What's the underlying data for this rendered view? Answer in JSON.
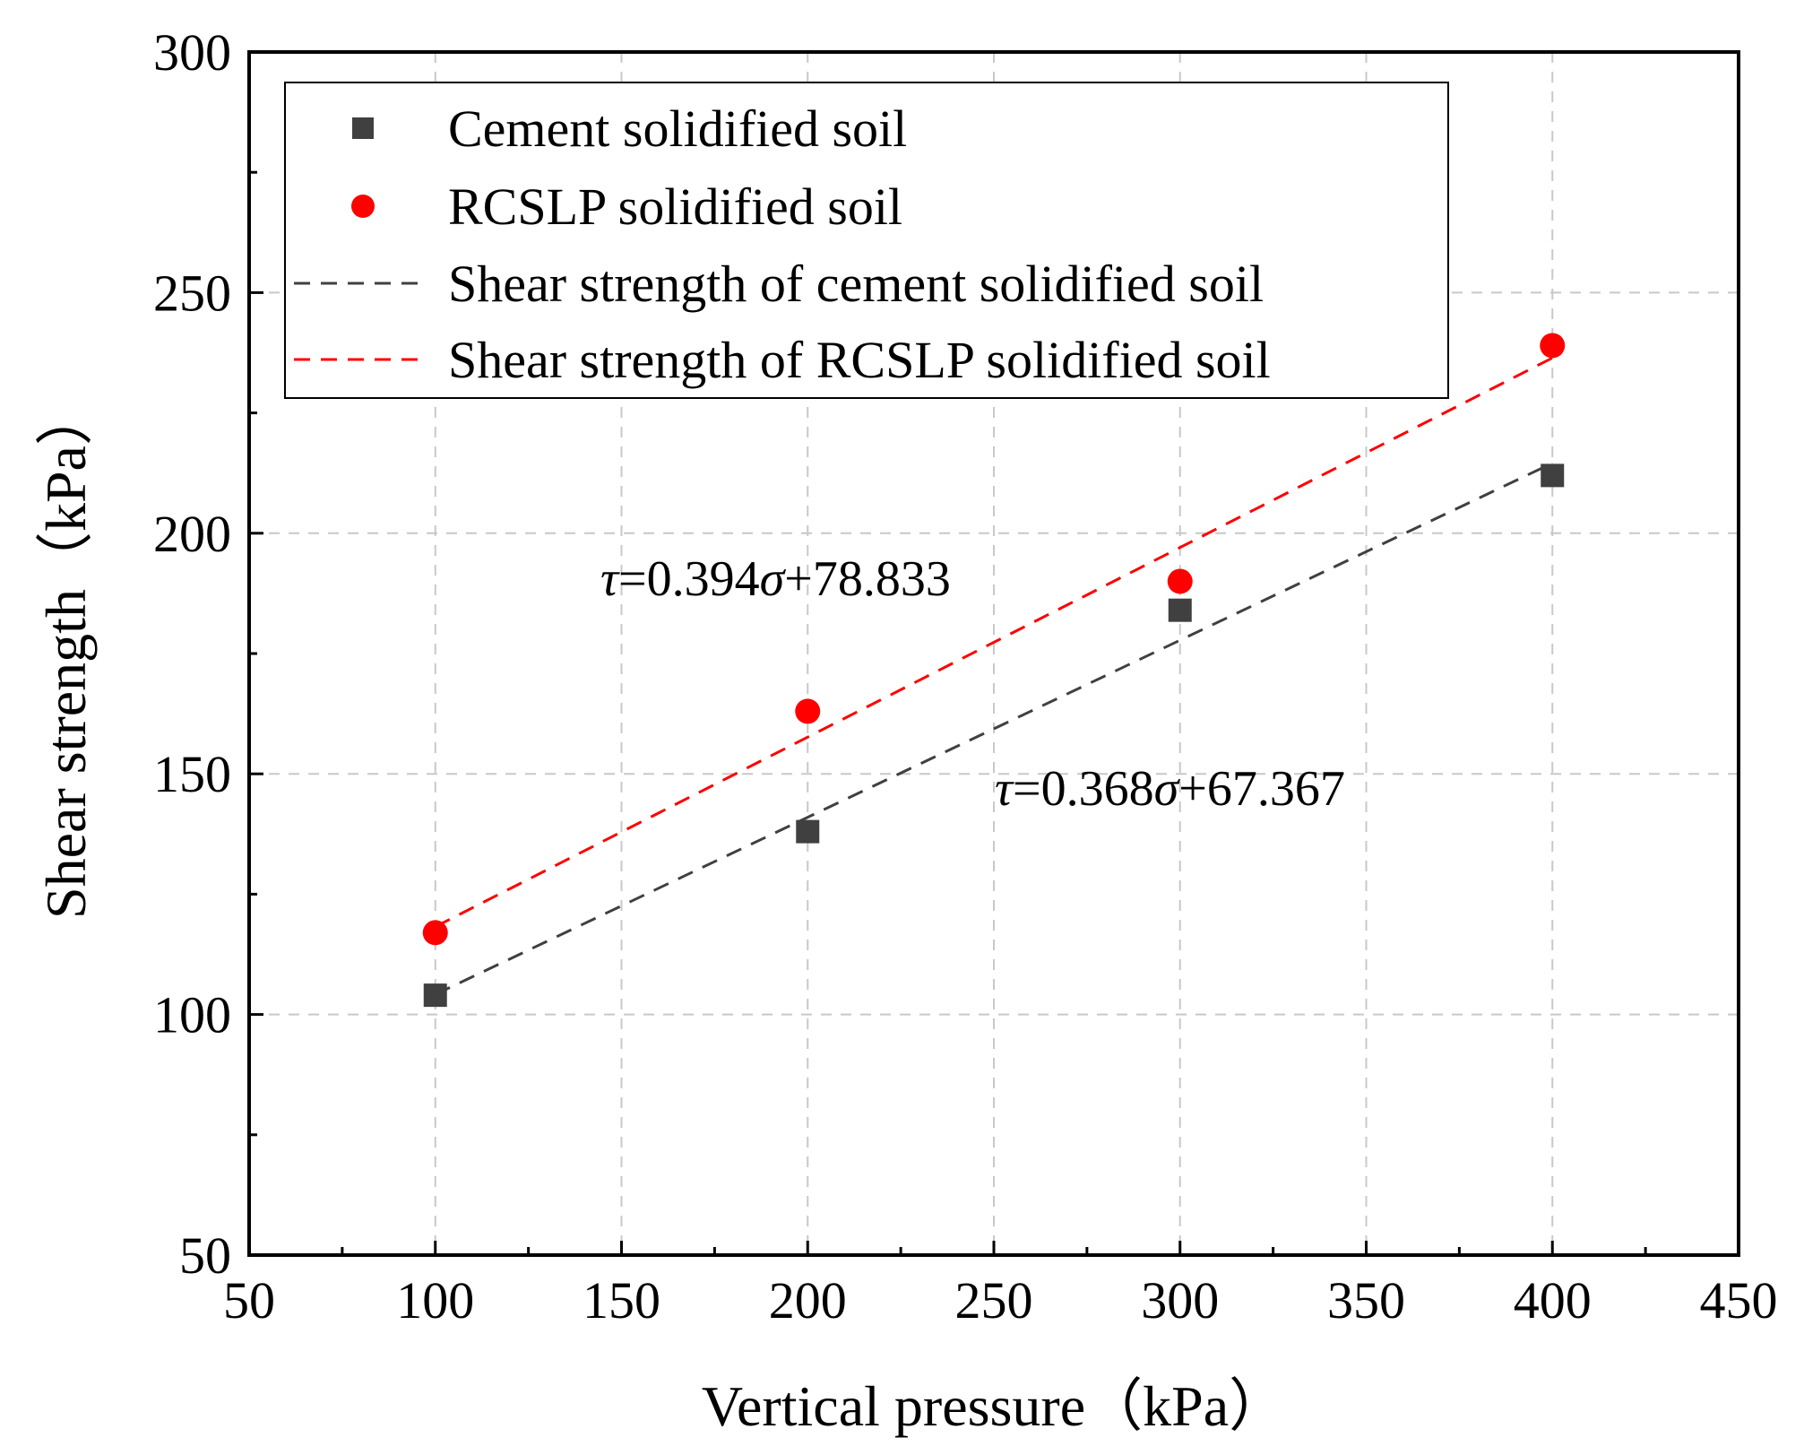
{
  "chart_data": {
    "type": "scatter",
    "title": "",
    "xlabel": "Vertical pressure（kPa）",
    "ylabel": "Shear strength（kPa）",
    "xlim": [
      50,
      450
    ],
    "ylim": [
      50,
      300
    ],
    "xticks": [
      50,
      100,
      150,
      200,
      250,
      300,
      350,
      400,
      450
    ],
    "yticks": [
      50,
      100,
      150,
      200,
      250,
      300
    ],
    "grid": true,
    "legend_position": "top-left",
    "series": [
      {
        "name": "Cement solidified soil",
        "kind": "points",
        "marker": "square",
        "color": "#404040",
        "x": [
          100,
          200,
          300,
          400
        ],
        "y": [
          104,
          138,
          184,
          212
        ]
      },
      {
        "name": "RCSLP solidified soil",
        "kind": "points",
        "marker": "circle",
        "color": "#ff0000",
        "x": [
          100,
          200,
          300,
          400
        ],
        "y": [
          117,
          163,
          190,
          239
        ]
      },
      {
        "name": "Shear strength of cement solidified soil",
        "kind": "fit",
        "color": "#404040",
        "slope": 0.368,
        "intercept": 67.367,
        "x_range": [
          100,
          400
        ]
      },
      {
        "name": "Shear strength of RCSLP solidified soil",
        "kind": "fit",
        "color": "#ff0000",
        "slope": 0.394,
        "intercept": 78.833,
        "x_range": [
          100,
          400
        ]
      }
    ],
    "annotations": [
      {
        "id": "rcslp",
        "sym1": "τ",
        "part1": "=0.394",
        "sym2": "σ",
        "part2": "+78.833"
      },
      {
        "id": "cement",
        "sym1": "τ",
        "part1": "=0.368",
        "sym2": "σ",
        "part2": "+67.367"
      }
    ]
  }
}
